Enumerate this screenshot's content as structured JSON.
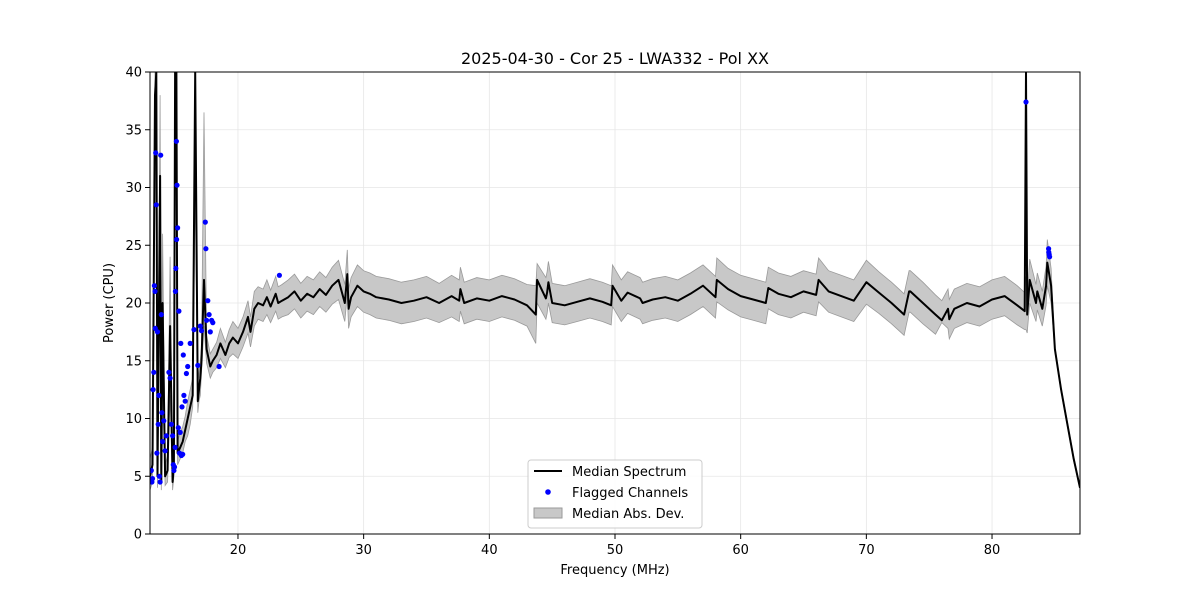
{
  "chart_data": {
    "type": "line",
    "title": "2025-04-30 - Cor 25 - LWA332 - Pol XX",
    "xlabel": "Frequency (MHz)",
    "ylabel": "Power (CPU)",
    "xlim": [
      13.0,
      87.0
    ],
    "ylim": [
      0,
      40
    ],
    "x_ticks": [
      20,
      30,
      40,
      50,
      60,
      70,
      80
    ],
    "y_ticks": [
      0,
      5,
      10,
      15,
      20,
      25,
      30,
      35,
      40
    ],
    "grid": true,
    "legend_position": "lower-center",
    "legend": {
      "median": "Median Spectrum",
      "flagged": "Flagged Channels",
      "mad": "Median Abs. Dev."
    },
    "colors": {
      "median": "#000000",
      "flagged": "#0000ff",
      "mad_fill": "#c8c8c8",
      "mad_edge": "#9a9a9a"
    },
    "series": [
      {
        "name": "Median Spectrum",
        "x": [
          13.0,
          13.2,
          13.4,
          13.5,
          13.6,
          13.8,
          13.9,
          14.0,
          14.2,
          14.4,
          14.6,
          14.8,
          14.9,
          15.0,
          15.1,
          15.2,
          15.4,
          15.6,
          15.8,
          16.0,
          16.2,
          16.4,
          16.6,
          16.8,
          16.9,
          17.0,
          17.1,
          17.3,
          17.5,
          17.8,
          18.0,
          18.3,
          18.6,
          19.0,
          19.3,
          19.6,
          20.0,
          20.4,
          20.8,
          21.0,
          21.3,
          21.6,
          22.0,
          22.3,
          22.6,
          23.0,
          23.2,
          23.5,
          24.0,
          24.5,
          25.0,
          25.5,
          26.0,
          26.5,
          27.0,
          27.5,
          28.0,
          28.5,
          28.7,
          28.8,
          29.0,
          29.5,
          30.0,
          30.5,
          31.0,
          32.0,
          33.0,
          34.0,
          35.0,
          36.0,
          37.0,
          37.6,
          37.7,
          38.0,
          39.0,
          40.0,
          41.0,
          42.0,
          43.0,
          43.7,
          43.8,
          44.5,
          44.6,
          44.7,
          45.0,
          46.0,
          47.0,
          48.0,
          49.0,
          49.7,
          49.8,
          50.5,
          51.0,
          52.0,
          52.2,
          53.0,
          54.0,
          55.0,
          56.0,
          57.0,
          58.0,
          58.1,
          59.0,
          60.0,
          61.0,
          62.0,
          62.2,
          63.0,
          64.0,
          65.0,
          66.0,
          66.2,
          67.0,
          68.0,
          69.0,
          70.0,
          71.0,
          72.0,
          73.0,
          73.4,
          73.5,
          74.5,
          75.5,
          76.0,
          76.5,
          76.6,
          77.0,
          78.0,
          79.0,
          80.0,
          81.0,
          82.0,
          82.6,
          82.7,
          82.8,
          83.0,
          83.5,
          83.6,
          84.0,
          84.3,
          84.4,
          84.7,
          85.0,
          85.5,
          86.0,
          86.5,
          87.0
        ],
        "values": [
          5.0,
          6.0,
          38.0,
          40.0,
          5.0,
          31.0,
          4.5,
          20.0,
          5.0,
          5.5,
          18.0,
          4.5,
          6.0,
          40.0,
          40.0,
          7.0,
          7.5,
          8.0,
          9.0,
          10.0,
          11.0,
          12.0,
          40.0,
          11.5,
          12.5,
          13.5,
          15.0,
          22.0,
          16.0,
          14.5,
          15.0,
          15.5,
          16.5,
          15.5,
          16.5,
          17.0,
          16.5,
          17.5,
          18.8,
          17.5,
          19.5,
          20.0,
          19.8,
          20.5,
          19.7,
          20.8,
          20.0,
          20.2,
          20.5,
          21.0,
          20.2,
          20.8,
          20.5,
          21.2,
          20.7,
          21.5,
          22.0,
          20.0,
          22.5,
          19.5,
          20.5,
          21.5,
          21.0,
          20.8,
          20.5,
          20.3,
          20.0,
          20.2,
          20.5,
          20.0,
          20.6,
          20.2,
          21.2,
          20.0,
          20.4,
          20.2,
          20.6,
          20.3,
          19.8,
          19.0,
          22.0,
          20.4,
          20.9,
          21.8,
          20.0,
          19.8,
          20.1,
          20.4,
          20.1,
          19.8,
          21.5,
          20.2,
          20.9,
          20.4,
          20.0,
          20.3,
          20.5,
          20.2,
          20.8,
          21.5,
          20.5,
          22.0,
          21.2,
          20.6,
          20.3,
          20.0,
          21.3,
          20.8,
          20.5,
          21.0,
          20.7,
          22.0,
          21.0,
          20.6,
          20.2,
          21.8,
          20.9,
          20.0,
          19.0,
          21.0,
          21.0,
          20.0,
          19.0,
          18.5,
          19.5,
          18.6,
          19.5,
          20.0,
          19.7,
          20.3,
          20.6,
          19.8,
          19.3,
          40.0,
          19.0,
          22.0,
          20.0,
          21.0,
          19.5,
          21.5,
          23.5,
          21.5,
          16.0,
          12.5,
          9.5,
          6.5,
          4.0
        ],
        "mad_low": [
          3.8,
          4.5,
          30.0,
          30.0,
          4.0,
          22.0,
          3.8,
          14.0,
          4.2,
          4.5,
          12.0,
          3.8,
          5.0,
          30.0,
          30.0,
          6.0,
          6.5,
          7.0,
          8.0,
          8.5,
          9.5,
          11.0,
          30.0,
          10.5,
          11.5,
          12.0,
          14.0,
          18.0,
          14.8,
          13.5,
          14.0,
          14.4,
          15.2,
          14.4,
          15.3,
          15.6,
          15.2,
          16.2,
          17.4,
          16.2,
          18.0,
          18.6,
          18.4,
          19.0,
          18.3,
          19.3,
          18.6,
          18.8,
          19.0,
          19.5,
          18.7,
          19.3,
          19.0,
          19.7,
          19.2,
          19.9,
          20.3,
          18.4,
          20.8,
          17.8,
          18.8,
          19.7,
          19.2,
          19.0,
          18.7,
          18.5,
          18.2,
          18.4,
          18.7,
          18.3,
          18.8,
          18.4,
          19.3,
          18.2,
          18.6,
          18.4,
          18.8,
          18.5,
          18.0,
          16.5,
          20.0,
          18.6,
          19.1,
          20.0,
          18.3,
          18.1,
          18.4,
          18.7,
          18.4,
          18.1,
          19.7,
          18.4,
          19.1,
          18.6,
          18.2,
          18.5,
          18.7,
          18.4,
          19.0,
          19.7,
          18.7,
          20.1,
          19.4,
          18.8,
          18.5,
          18.2,
          19.5,
          19.0,
          18.7,
          19.2,
          18.9,
          20.1,
          19.2,
          18.8,
          18.4,
          19.9,
          19.1,
          18.2,
          17.2,
          19.2,
          19.2,
          18.2,
          17.3,
          18.3,
          17.8,
          16.9,
          17.8,
          18.3,
          18.0,
          18.6,
          18.9,
          18.1,
          17.7,
          17.7,
          17.4,
          20.0,
          18.4,
          19.4,
          18.0,
          19.8,
          21.5,
          20.0,
          15.8,
          12.3,
          9.3,
          6.3,
          3.9
        ],
        "mad_high": [
          6.5,
          7.5,
          40.0,
          40.0,
          6.0,
          38.0,
          5.5,
          26.0,
          6.0,
          6.8,
          24.0,
          5.5,
          7.5,
          40.0,
          40.0,
          8.0,
          8.8,
          9.3,
          10.2,
          11.5,
          12.5,
          13.5,
          40.0,
          13.0,
          14.0,
          15.0,
          16.2,
          36.5,
          17.2,
          15.6,
          16.0,
          16.6,
          17.8,
          16.6,
          17.7,
          18.4,
          17.8,
          18.8,
          20.2,
          18.8,
          21.0,
          21.4,
          21.2,
          22.0,
          21.1,
          22.3,
          21.4,
          21.6,
          22.0,
          22.5,
          21.7,
          22.3,
          22.0,
          22.7,
          22.2,
          23.1,
          23.7,
          21.6,
          24.6,
          21.2,
          22.2,
          23.3,
          22.8,
          22.6,
          22.3,
          22.1,
          21.8,
          22.0,
          22.3,
          21.7,
          22.4,
          22.0,
          23.1,
          21.8,
          22.2,
          22.0,
          22.4,
          22.1,
          21.6,
          21.5,
          23.4,
          22.2,
          22.7,
          23.6,
          21.7,
          21.5,
          21.8,
          22.1,
          21.8,
          21.5,
          23.3,
          22.0,
          22.7,
          22.2,
          21.8,
          22.1,
          22.3,
          22.0,
          22.6,
          23.3,
          22.3,
          23.9,
          23.0,
          22.4,
          22.1,
          21.8,
          23.1,
          22.6,
          22.3,
          22.8,
          22.5,
          23.9,
          22.8,
          22.4,
          22.0,
          23.7,
          22.7,
          21.8,
          20.8,
          22.8,
          22.8,
          21.8,
          20.7,
          20.2,
          21.2,
          20.3,
          21.2,
          21.7,
          21.4,
          22.0,
          22.3,
          21.5,
          20.9,
          22.3,
          20.6,
          23.8,
          21.6,
          22.6,
          21.0,
          23.2,
          25.5,
          23.0,
          16.2,
          12.7,
          9.7,
          6.7,
          4.1
        ]
      }
    ],
    "flagged_channels": {
      "x": [
        13.1,
        13.15,
        13.2,
        13.25,
        13.3,
        13.35,
        13.4,
        13.42,
        13.45,
        13.5,
        13.55,
        13.6,
        13.65,
        13.7,
        13.75,
        13.8,
        13.85,
        13.9,
        13.95,
        14.0,
        14.1,
        14.2,
        14.3,
        14.5,
        14.6,
        14.7,
        14.8,
        14.85,
        14.9,
        14.95,
        15.0,
        15.02,
        15.05,
        15.1,
        15.12,
        15.15,
        15.2,
        15.25,
        15.3,
        15.35,
        15.4,
        15.45,
        15.5,
        15.55,
        15.6,
        15.65,
        15.7,
        15.8,
        15.9,
        16.0,
        16.2,
        16.5,
        16.8,
        17.0,
        17.1,
        17.4,
        17.45,
        17.5,
        17.6,
        17.7,
        17.8,
        17.9,
        18.0,
        18.5,
        23.3,
        82.7,
        84.5,
        84.52,
        84.55,
        84.58
      ],
      "values": [
        5.5,
        4.5,
        4.8,
        12.5,
        14.0,
        21.5,
        21.0,
        17.8,
        33.0,
        28.5,
        7.0,
        17.5,
        9.5,
        12.0,
        5.0,
        4.5,
        32.8,
        19.0,
        10.5,
        8.0,
        9.8,
        7.2,
        8.5,
        14.0,
        13.5,
        9.5,
        8.5,
        6.0,
        5.5,
        5.8,
        7.5,
        21.0,
        23.0,
        34.0,
        25.5,
        30.2,
        26.5,
        9.2,
        19.3,
        7.0,
        8.8,
        16.5,
        6.8,
        11.0,
        6.9,
        15.5,
        12.0,
        11.5,
        13.9,
        14.5,
        16.5,
        17.7,
        14.6,
        18.0,
        17.6,
        27.0,
        24.7,
        18.5,
        20.2,
        19.0,
        17.5,
        18.5,
        18.3,
        14.5,
        22.4,
        37.4,
        24.7,
        24.4,
        24.2,
        24.0
      ]
    }
  }
}
